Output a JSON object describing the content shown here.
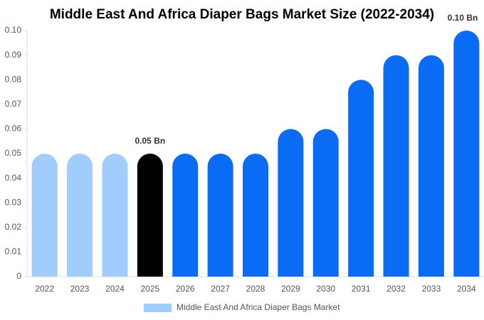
{
  "chart_data": {
    "type": "bar",
    "title": "Middle East And Africa Diaper Bags Market Size (2022-2034)",
    "categories": [
      "2022",
      "2023",
      "2024",
      "2025",
      "2026",
      "2027",
      "2028",
      "2029",
      "2030",
      "2031",
      "2032",
      "2033",
      "2034"
    ],
    "series": [
      {
        "name": "Middle East And Africa Diaper Bags Market",
        "color": "#a0cdfc",
        "colors": [
          "#a0cdfc",
          "#a0cdfc",
          "#a0cdfc",
          "#000000",
          "#0a6cf5",
          "#0a6cf5",
          "#0a6cf5",
          "#0a6cf5",
          "#0a6cf5",
          "#0a6cf5",
          "#0a6cf5",
          "#0a6cf5",
          "#0a6cf5"
        ],
        "values": [
          0.05,
          0.05,
          0.05,
          0.05,
          0.05,
          0.05,
          0.05,
          0.06,
          0.06,
          0.08,
          0.09,
          0.09,
          0.1
        ],
        "value_labels": [
          null,
          null,
          null,
          "0.05 Bn",
          null,
          null,
          null,
          null,
          null,
          null,
          null,
          null,
          "0.10 Bn"
        ]
      }
    ],
    "ylim": [
      0,
      0.1
    ],
    "yticks": [
      0,
      0.01,
      0.02,
      0.03,
      0.04,
      0.05,
      0.06,
      0.07,
      0.08,
      0.09,
      {
        "value": 0.1,
        "label": "0.10"
      }
    ],
    "grid": false,
    "legend": "bottom"
  }
}
